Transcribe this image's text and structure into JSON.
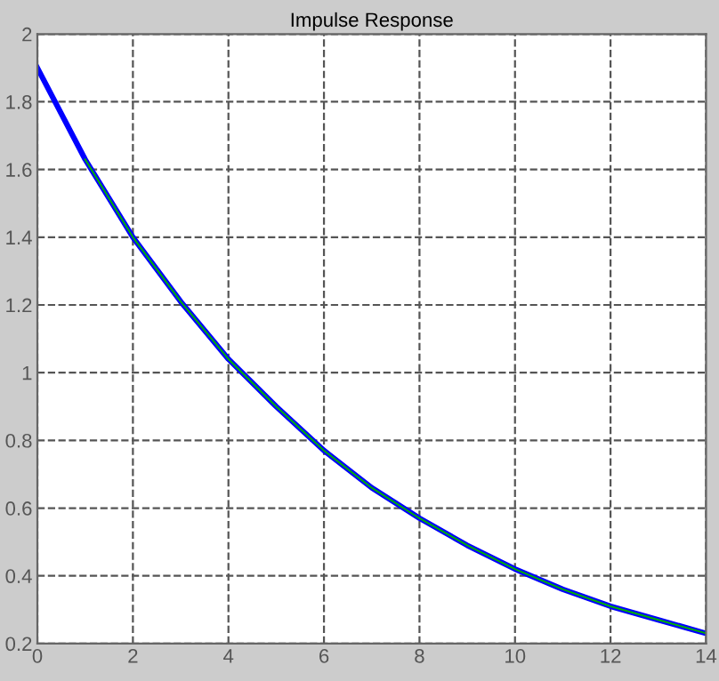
{
  "chart_data": {
    "type": "line",
    "title": "Impulse Response",
    "series": [
      {
        "color": "#0000ff",
        "x": [
          0,
          1,
          2,
          3,
          4,
          5,
          6,
          7,
          8,
          9,
          10,
          11,
          12,
          13,
          14
        ],
        "values": [
          1.9,
          1.63,
          1.4,
          1.21,
          1.04,
          0.9,
          0.77,
          0.66,
          0.57,
          0.49,
          0.42,
          0.36,
          0.31,
          0.27,
          0.23
        ]
      },
      {
        "color": "#00b000",
        "x": [
          1,
          2,
          3,
          4,
          5,
          6,
          7,
          8,
          9,
          10,
          11,
          12,
          13,
          14
        ],
        "values": [
          1.63,
          1.4,
          1.21,
          1.04,
          0.9,
          0.77,
          0.66,
          0.57,
          0.49,
          0.42,
          0.36,
          0.31,
          0.27,
          0.23
        ]
      }
    ],
    "xlim": [
      0,
      14
    ],
    "xticks": [
      0,
      2,
      4,
      6,
      8,
      10,
      12,
      14
    ],
    "ylim": [
      0.2,
      2
    ],
    "yticks": [
      0.2,
      0.4,
      0.6,
      0.8,
      1,
      1.2,
      1.4,
      1.6,
      1.8,
      2
    ],
    "grid": true,
    "line_style": "solid"
  }
}
